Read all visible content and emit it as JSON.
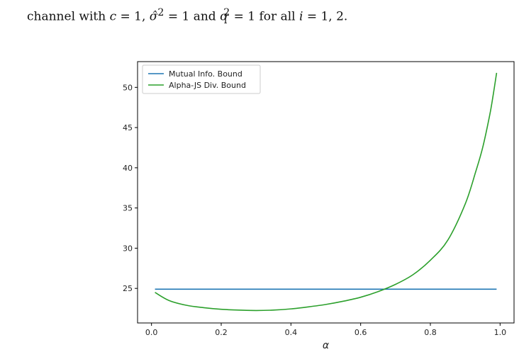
{
  "caption": {
    "prefix": "channel with ",
    "parts": [
      "c",
      " = 1, ",
      "σ̂",
      "2",
      " = 1 and ",
      "σ",
      "i",
      "2",
      " = 1 for all ",
      "i",
      " = 1, 2."
    ]
  },
  "chart_data": {
    "type": "line",
    "title": "",
    "xlabel": "α",
    "ylabel": "",
    "xlim": [
      -0.04,
      1.04
    ],
    "ylim": [
      20.7,
      53.2
    ],
    "xticks": [
      0.0,
      0.2,
      0.4,
      0.6,
      0.8,
      1.0
    ],
    "xtick_labels": [
      "0.0",
      "0.2",
      "0.4",
      "0.6",
      "0.8",
      "1.0"
    ],
    "yticks": [
      25,
      30,
      35,
      40,
      45,
      50
    ],
    "ytick_labels": [
      "25",
      "30",
      "35",
      "40",
      "45",
      "50"
    ],
    "grid": false,
    "legend_position": "top-left",
    "series": [
      {
        "name": "Mutual Info. Bound",
        "color": "#1f77b4",
        "x": [
          0.01,
          0.99
        ],
        "y": [
          24.9,
          24.9
        ]
      },
      {
        "name": "Alpha-JS Div. Bound",
        "color": "#2ca02c",
        "x": [
          0.01,
          0.05,
          0.1,
          0.15,
          0.2,
          0.25,
          0.3,
          0.35,
          0.4,
          0.45,
          0.5,
          0.55,
          0.6,
          0.65,
          0.7,
          0.75,
          0.8,
          0.85,
          0.9,
          0.93,
          0.95,
          0.97,
          0.98,
          0.99
        ],
        "y": [
          24.5,
          23.5,
          22.9,
          22.6,
          22.4,
          22.3,
          22.25,
          22.3,
          22.45,
          22.7,
          23.0,
          23.4,
          23.9,
          24.6,
          25.5,
          26.7,
          28.5,
          31.0,
          35.5,
          39.5,
          42.5,
          46.5,
          49.0,
          51.8
        ]
      }
    ]
  }
}
